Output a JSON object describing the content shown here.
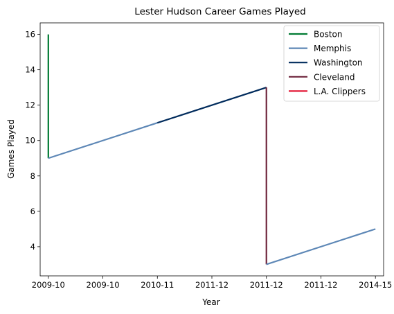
{
  "chart_data": {
    "type": "line",
    "title": "Lester Hudson Career Games Played",
    "xlabel": "Year",
    "ylabel": "Games Played",
    "x_ticks": [
      "2009-10",
      "2009-10",
      "2010-11",
      "2011-12",
      "2011-12",
      "2011-12",
      "2014-15"
    ],
    "x_range": [
      -0.15,
      6.15
    ],
    "y_ticks": [
      4,
      6,
      8,
      10,
      12,
      14,
      16
    ],
    "ylim": [
      2.35,
      16.65
    ],
    "grid": false,
    "legend_position": "upper right",
    "series": [
      {
        "name": "Boston",
        "color": "#007A33",
        "points": [
          [
            0,
            16
          ],
          [
            0,
            9
          ]
        ]
      },
      {
        "name": "Memphis",
        "color": "#5D87B6",
        "points": [
          [
            0,
            9
          ],
          [
            1,
            10
          ],
          [
            2,
            11
          ]
        ]
      },
      {
        "name": "Washington",
        "color": "#002B5C",
        "points": [
          [
            2,
            11
          ],
          [
            3,
            12
          ],
          [
            4,
            13
          ]
        ]
      },
      {
        "name": "Cleveland",
        "color": "#6F263D",
        "points": [
          [
            4,
            13
          ],
          [
            4,
            3
          ]
        ]
      },
      {
        "name": "Memphis",
        "color": "#5D87B6",
        "points": [
          [
            4,
            3
          ],
          [
            5,
            4
          ],
          [
            6,
            5
          ]
        ]
      },
      {
        "name": "L.A. Clippers",
        "color": "#E31837",
        "points": []
      }
    ],
    "legend": [
      {
        "label": "Boston",
        "color": "#007A33"
      },
      {
        "label": "Memphis",
        "color": "#5D87B6"
      },
      {
        "label": "Washington",
        "color": "#002B5C"
      },
      {
        "label": "Cleveland",
        "color": "#6F263D"
      },
      {
        "label": "L.A. Clippers",
        "color": "#E31837"
      }
    ]
  }
}
